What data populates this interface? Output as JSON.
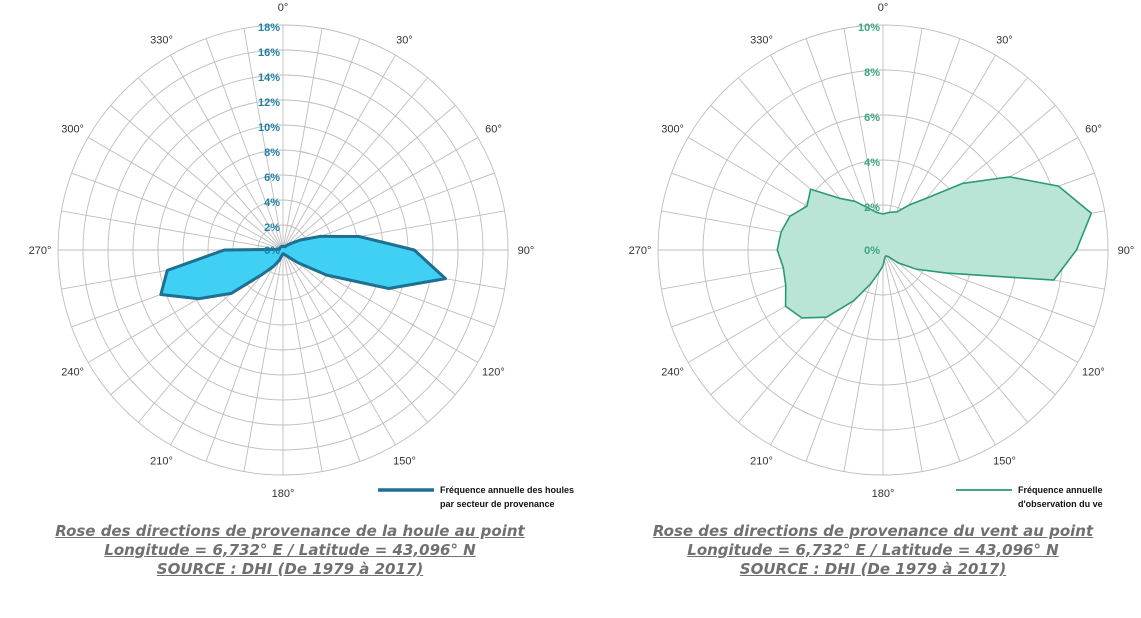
{
  "chart_data": [
    {
      "type": "radar",
      "title": "",
      "angle_labels": [
        "0°",
        "30°",
        "60°",
        "90°",
        "120°",
        "150°",
        "180°",
        "210°",
        "240°",
        "270°",
        "300°",
        "330°"
      ],
      "radial_tick_labels": [
        "0%",
        "2%",
        "4%",
        "6%",
        "8%",
        "10%",
        "12%",
        "14%",
        "16%",
        "18%"
      ],
      "rmax": 18,
      "direction_step_deg": 10,
      "grid": true,
      "series": [
        {
          "name": "Fréquence annuelle des houles par secteur de provenance",
          "color": "#1e6f91",
          "fill": "#3fd0f4",
          "values": [
            0.3,
            0.3,
            0.3,
            0.3,
            0.5,
            0.8,
            1.6,
            3.2,
            6.2,
            10.5,
            13.2,
            9.0,
            4.0,
            1.6,
            0.8,
            0.5,
            0.4,
            0.3,
            0.3,
            0.4,
            0.9,
            1.5,
            2.5,
            5.4,
            7.8,
            10.4,
            9.4,
            4.7,
            0.3,
            0.3,
            0.3,
            0.3,
            0.3,
            0.3,
            0.3,
            0.3
          ]
        }
      ],
      "legend": {
        "position": "bottom-right",
        "line1": "Fréquence annuelle des houles",
        "line2": "par secteur de provenance"
      },
      "caption": {
        "line1": "Rose des directions de provenance de la houle au point",
        "line2": "Longitude = 6,732° E / Latitude = 43,096° N",
        "line3": "SOURCE : DHI (De 1979 à 2017)"
      },
      "colors": {
        "tick": "#1e7fa3",
        "grid": "#bdbdbd"
      }
    },
    {
      "type": "radar",
      "title": "",
      "angle_labels": [
        "0°",
        "30°",
        "60°",
        "90°",
        "120°",
        "150°",
        "180°",
        "210°",
        "240°",
        "270°",
        "300°",
        "330°"
      ],
      "radial_tick_labels": [
        "0%",
        "2%",
        "4%",
        "6%",
        "8%",
        "10%"
      ],
      "rmax": 10,
      "direction_step_deg": 10,
      "grid": true,
      "series": [
        {
          "name": "Fréquence annuelle d'observation du ve",
          "color": "#2a9a75",
          "fill": "#b9e4d6",
          "values": [
            1.6,
            1.7,
            1.8,
            2.3,
            3.0,
            4.6,
            6.5,
            8.3,
            9.4,
            8.6,
            7.7,
            3.0,
            1.7,
            0.9,
            0.4,
            0.3,
            0.3,
            0.4,
            0.7,
            1.0,
            1.6,
            2.6,
            3.9,
            4.7,
            5.0,
            4.6,
            4.5,
            4.7,
            4.6,
            4.4,
            3.9,
            4.2,
            3.0,
            2.5,
            2.0,
            1.7
          ]
        }
      ],
      "legend": {
        "position": "bottom-right",
        "line1": "Fréquence annuelle",
        "line2": "d'observation du ve"
      },
      "caption": {
        "line1": "Rose des directions de provenance du vent au point",
        "line2": "Longitude = 6,732° E / Latitude = 43,096° N",
        "line3": "SOURCE : DHI (De 1979 à 2017)"
      },
      "colors": {
        "tick": "#3aa77f",
        "grid": "#bdbdbd"
      }
    }
  ]
}
